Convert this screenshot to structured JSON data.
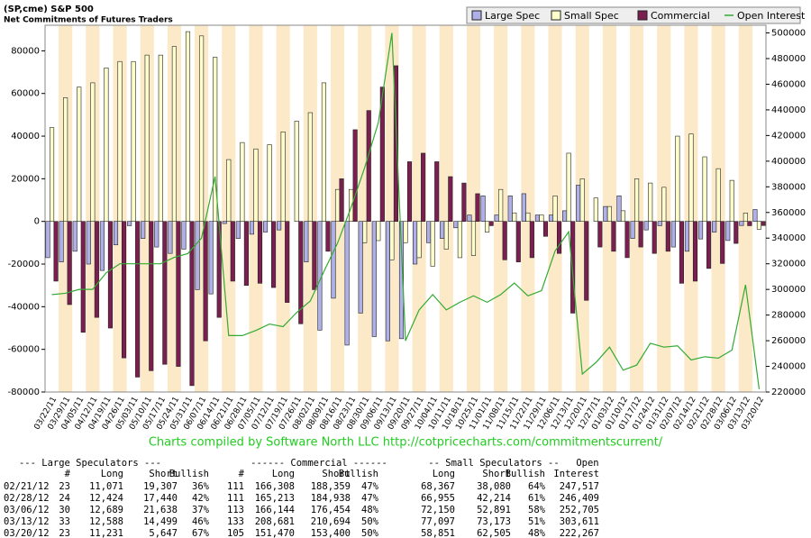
{
  "chart_data": {
    "type": "bar",
    "title": "(SP,cme) S&P 500",
    "subtitle": "Net Commitments of Futures Traders",
    "footer": "Charts compiled by Software North LLC  http://cotpricecharts.com/commitmentscurrent/",
    "legend": "top-right",
    "categories": [
      "03/22/11",
      "03/29/11",
      "04/05/11",
      "04/12/11",
      "04/19/11",
      "04/26/11",
      "05/03/11",
      "05/10/11",
      "05/17/11",
      "05/24/11",
      "05/31/11",
      "06/07/11",
      "06/14/11",
      "06/21/11",
      "06/28/11",
      "07/05/11",
      "07/12/11",
      "07/19/11",
      "07/26/11",
      "08/02/11",
      "08/09/11",
      "08/16/11",
      "08/23/11",
      "08/30/11",
      "09/06/11",
      "09/13/11",
      "09/20/11",
      "09/27/11",
      "10/04/11",
      "10/11/11",
      "10/18/11",
      "10/25/11",
      "11/01/11",
      "11/08/11",
      "11/15/11",
      "11/22/11",
      "11/29/11",
      "12/06/11",
      "12/13/11",
      "12/20/11",
      "12/27/11",
      "01/03/12",
      "01/10/12",
      "01/17/12",
      "01/24/12",
      "01/31/12",
      "02/07/12",
      "02/14/12",
      "02/21/12",
      "02/28/12",
      "03/06/12",
      "03/13/12",
      "03/20/12"
    ],
    "series": [
      {
        "name": "Large Spec",
        "color": "#b0b0e8",
        "values": [
          -17000,
          -19000,
          -14000,
          -20000,
          -23000,
          -11000,
          -2000,
          -8000,
          -12000,
          -15000,
          -13000,
          -32000,
          -34000,
          -1000,
          -8000,
          -6000,
          -5000,
          -4000,
          0,
          -19000,
          -51000,
          -36000,
          -58000,
          -43000,
          -54000,
          -56000,
          -55000,
          -20000,
          -10000,
          -8000,
          -3000,
          3000,
          12000,
          3000,
          12000,
          13000,
          3000,
          3000,
          5000,
          17000,
          0,
          7000,
          12000,
          -8000,
          -4000,
          -2000,
          -12000,
          -14000,
          -8236,
          -5016,
          -8949,
          -1911,
          5584
        ]
      },
      {
        "name": "Small Spec",
        "color": "#ffffcc",
        "values": [
          44000,
          58000,
          63000,
          65000,
          72000,
          75000,
          75000,
          78000,
          78000,
          82000,
          89000,
          87000,
          77000,
          29000,
          37000,
          34000,
          36000,
          42000,
          47000,
          51000,
          65000,
          15000,
          15000,
          -10000,
          -9000,
          -18000,
          -10000,
          -17000,
          -21000,
          -13000,
          -17000,
          -16000,
          -5000,
          15000,
          4000,
          4000,
          3000,
          12000,
          32000,
          20000,
          11000,
          7000,
          5000,
          20000,
          18000,
          16000,
          40000,
          41000,
          30287,
          24741,
          19258,
          3924,
          -3654
        ]
      },
      {
        "name": "Commercial",
        "color": "#7a1f50",
        "values": [
          -28000,
          -39000,
          -52000,
          -45000,
          -50000,
          -64000,
          -73000,
          -70000,
          -67000,
          -68000,
          -77000,
          -56000,
          -45000,
          -28000,
          -30000,
          -29000,
          -31000,
          -38000,
          -48000,
          -32000,
          -14000,
          20000,
          43000,
          52000,
          63000,
          73000,
          28000,
          32000,
          28000,
          21000,
          18000,
          13000,
          -2000,
          -18000,
          -19000,
          -17000,
          -7000,
          -15000,
          -43000,
          -37000,
          -12000,
          -14000,
          -17000,
          -12000,
          -15000,
          -14000,
          -29000,
          -28000,
          -22051,
          -19725,
          -10310,
          -2013,
          -1930
        ]
      },
      {
        "name": "Open Interest",
        "color": "#33aa33",
        "axis": "y2",
        "values": [
          296000,
          297000,
          300000,
          300000,
          313000,
          320000,
          320000,
          320000,
          320000,
          325000,
          328000,
          340000,
          388000,
          264000,
          264000,
          268000,
          273000,
          271000,
          282000,
          291000,
          314000,
          336000,
          364000,
          395000,
          430000,
          500000,
          260000,
          284000,
          296000,
          284000,
          290000,
          295000,
          290000,
          296000,
          305000,
          295000,
          299000,
          330000,
          345000,
          234000,
          243000,
          255000,
          237000,
          241000,
          258000,
          255000,
          256000,
          245000,
          247517,
          246409,
          252705,
          303611,
          222267
        ]
      }
    ],
    "ylim": [
      -80000,
      92000
    ],
    "yticks": [
      -80000,
      -60000,
      -40000,
      -20000,
      0,
      20000,
      40000,
      60000,
      80000
    ],
    "y2lim": [
      220000,
      506000
    ],
    "y2ticks": [
      220000,
      240000,
      260000,
      280000,
      300000,
      320000,
      340000,
      360000,
      380000,
      400000,
      420000,
      440000,
      460000,
      480000,
      500000
    ]
  },
  "table": {
    "group_headers": [
      "--- Large Speculators ---",
      "------ Commercial ------",
      "-- Small Speculators --",
      "Open"
    ],
    "columns": [
      "#",
      "Long",
      "Short",
      "Bullish",
      "#",
      "Long",
      "Short",
      "Bullish",
      "Long",
      "Short",
      "Bullish",
      "Interest"
    ],
    "rows": [
      [
        "02/21/12",
        "23",
        "11,071",
        "19,307",
        "36%",
        "111",
        "166,308",
        "188,359",
        "47%",
        "68,367",
        "38,080",
        "64%",
        "247,517"
      ],
      [
        "02/28/12",
        "24",
        "12,424",
        "17,440",
        "42%",
        "111",
        "165,213",
        "184,938",
        "47%",
        "66,955",
        "42,214",
        "61%",
        "246,409"
      ],
      [
        "03/06/12",
        "30",
        "12,689",
        "21,638",
        "37%",
        "113",
        "166,144",
        "176,454",
        "48%",
        "72,150",
        "52,891",
        "58%",
        "252,705"
      ],
      [
        "03/13/12",
        "33",
        "12,588",
        "14,499",
        "46%",
        "133",
        "208,681",
        "210,694",
        "50%",
        "77,097",
        "73,173",
        "51%",
        "303,611"
      ],
      [
        "03/20/12",
        "23",
        "11,231",
        "5,647",
        "67%",
        "105",
        "151,470",
        "153,400",
        "50%",
        "58,851",
        "62,505",
        "48%",
        "222,267"
      ]
    ]
  }
}
